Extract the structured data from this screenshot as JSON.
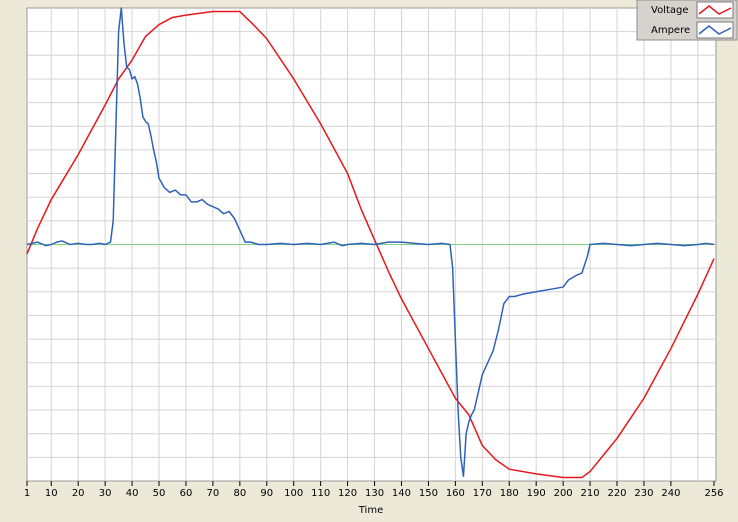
{
  "chart_data": {
    "type": "line",
    "xlabel": "Time",
    "xlim": [
      1,
      256
    ],
    "xticks": [
      1,
      10,
      20,
      30,
      40,
      50,
      60,
      70,
      80,
      90,
      100,
      110,
      120,
      130,
      140,
      150,
      160,
      170,
      180,
      190,
      200,
      210,
      220,
      230,
      240,
      256
    ],
    "xgrid": [
      10,
      20,
      30,
      40,
      50,
      60,
      70,
      80,
      90,
      100,
      110,
      120,
      130,
      140,
      150,
      160,
      170,
      180,
      190,
      200,
      210,
      220,
      230,
      240,
      250
    ],
    "ylim": [
      -10,
      10
    ],
    "ygrid": [
      -9,
      -8,
      -7,
      -6,
      -5,
      -4,
      -3,
      -2,
      -1,
      0,
      1,
      2,
      3,
      4,
      5,
      6,
      7,
      8,
      9
    ],
    "grid": true,
    "zero_line": {
      "value": 0,
      "color": "#7fd47f"
    },
    "legend": "top-right",
    "series": [
      {
        "name": "Voltage",
        "color": "#e8161b",
        "x": [
          1,
          5,
          10,
          20,
          30,
          35,
          40,
          45,
          50,
          55,
          60,
          70,
          80,
          85,
          90,
          100,
          110,
          120,
          125,
          130,
          135,
          140,
          150,
          160,
          165,
          170,
          175,
          180,
          190,
          200,
          207,
          210,
          215,
          220,
          230,
          240,
          250,
          256
        ],
        "values": [
          -0.4,
          0.7,
          1.9,
          3.8,
          5.9,
          7.0,
          7.8,
          8.8,
          9.3,
          9.6,
          9.7,
          9.85,
          9.85,
          9.3,
          8.7,
          7.0,
          5.1,
          3.0,
          1.5,
          0.2,
          -1.1,
          -2.3,
          -4.4,
          -6.5,
          -7.2,
          -8.5,
          -9.1,
          -9.5,
          -9.7,
          -9.85,
          -9.85,
          -9.6,
          -8.9,
          -8.2,
          -6.5,
          -4.4,
          -2.1,
          -0.6
        ]
      },
      {
        "name": "Ampere",
        "color": "#2e62b8",
        "x": [
          1,
          3,
          5,
          8,
          10,
          12,
          14,
          17,
          20,
          23,
          25,
          28,
          30,
          32,
          33,
          34,
          35,
          36,
          37,
          38,
          39,
          40,
          41,
          42,
          43,
          44,
          45,
          46,
          47,
          48,
          49,
          50,
          52,
          54,
          56,
          58,
          60,
          62,
          64,
          66,
          68,
          70,
          72,
          74,
          76,
          78,
          80,
          82,
          84,
          87,
          90,
          95,
          100,
          105,
          110,
          115,
          118,
          120,
          125,
          130,
          135,
          140,
          145,
          150,
          155,
          158,
          159,
          160,
          161,
          162,
          163,
          164,
          165,
          166,
          167,
          168,
          170,
          172,
          174,
          176,
          178,
          180,
          182,
          185,
          190,
          195,
          200,
          202,
          205,
          207,
          209,
          210,
          215,
          220,
          225,
          230,
          235,
          240,
          245,
          250,
          253,
          256
        ],
        "values": [
          0,
          0.05,
          0.1,
          -0.05,
          0,
          0.1,
          0.15,
          0,
          0.05,
          0,
          0,
          0.05,
          0,
          0.1,
          1,
          5,
          9,
          10,
          8.5,
          7.5,
          7.4,
          7.0,
          7.1,
          6.8,
          6.2,
          5.4,
          5.2,
          5.1,
          4.6,
          4.0,
          3.5,
          2.8,
          2.4,
          2.2,
          2.3,
          2.1,
          2.1,
          1.8,
          1.8,
          1.9,
          1.7,
          1.6,
          1.5,
          1.3,
          1.4,
          1.1,
          0.6,
          0.1,
          0.1,
          0,
          0,
          0.05,
          0,
          0.05,
          0,
          0.1,
          -0.05,
          0,
          0.05,
          0,
          0.1,
          0.1,
          0.05,
          0,
          0.05,
          0,
          -1,
          -4,
          -7,
          -9,
          -9.8,
          -8,
          -7.5,
          -7.2,
          -7.0,
          -6.5,
          -5.5,
          -5.0,
          -4.5,
          -3.6,
          -2.5,
          -2.2,
          -2.2,
          -2.1,
          -2.0,
          -1.9,
          -1.8,
          -1.5,
          -1.3,
          -1.2,
          -0.5,
          0,
          0.05,
          0,
          -0.05,
          0,
          0.05,
          0,
          -0.05,
          0,
          0.05,
          0
        ]
      }
    ]
  }
}
